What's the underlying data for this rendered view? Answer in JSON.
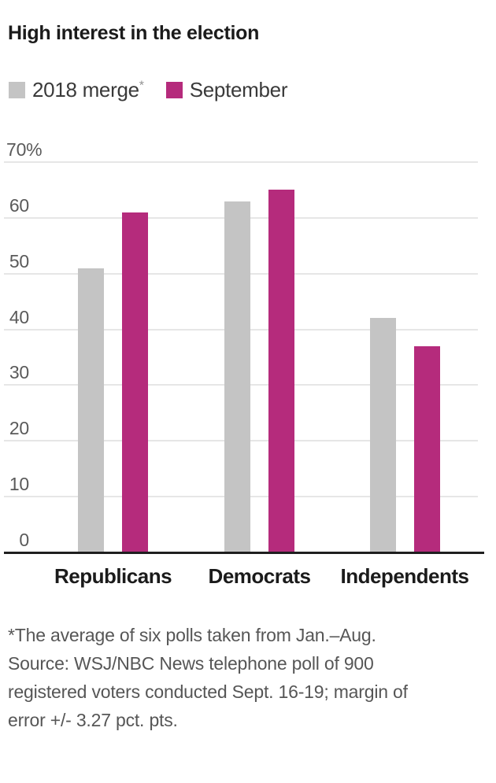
{
  "title": "High interest in the election",
  "legend": {
    "items": [
      {
        "key": "2018-merge",
        "label": "2018 merge",
        "note_marker": "*",
        "color": "#c4c4c4"
      },
      {
        "key": "september",
        "label": "September",
        "note_marker": "",
        "color": "#b52b7c"
      }
    ]
  },
  "chart_data": {
    "type": "bar",
    "title": "High interest in the election",
    "categories": [
      "Republicans",
      "Democrats",
      "Independents"
    ],
    "series": [
      {
        "key": "2018-merge",
        "name": "2018 merge*",
        "color": "#c4c4c4",
        "values": [
          51,
          63,
          42
        ]
      },
      {
        "key": "september",
        "name": "September",
        "color": "#b52b7c",
        "values": [
          61,
          65,
          37
        ]
      }
    ],
    "xlabel": "",
    "ylabel": "",
    "unit": "%",
    "ylim": [
      0,
      70
    ],
    "yticks": [
      {
        "value": 70,
        "label": "70%"
      },
      {
        "value": 60,
        "label": "60"
      },
      {
        "value": 50,
        "label": "50"
      },
      {
        "value": 40,
        "label": "40"
      },
      {
        "value": 30,
        "label": "30"
      },
      {
        "value": 20,
        "label": "20"
      },
      {
        "value": 10,
        "label": "10"
      },
      {
        "value": 0,
        "label": "0"
      }
    ],
    "grid": "horizontal",
    "legend_position": "top-left"
  },
  "footnote": {
    "lines": [
      "*The average of six polls taken from Jan.–Aug.",
      "Source: WSJ/NBC News telephone poll of 900",
      "registered voters conducted Sept. 16-19; margin of",
      "error +/- 3.27 pct. pts."
    ]
  }
}
